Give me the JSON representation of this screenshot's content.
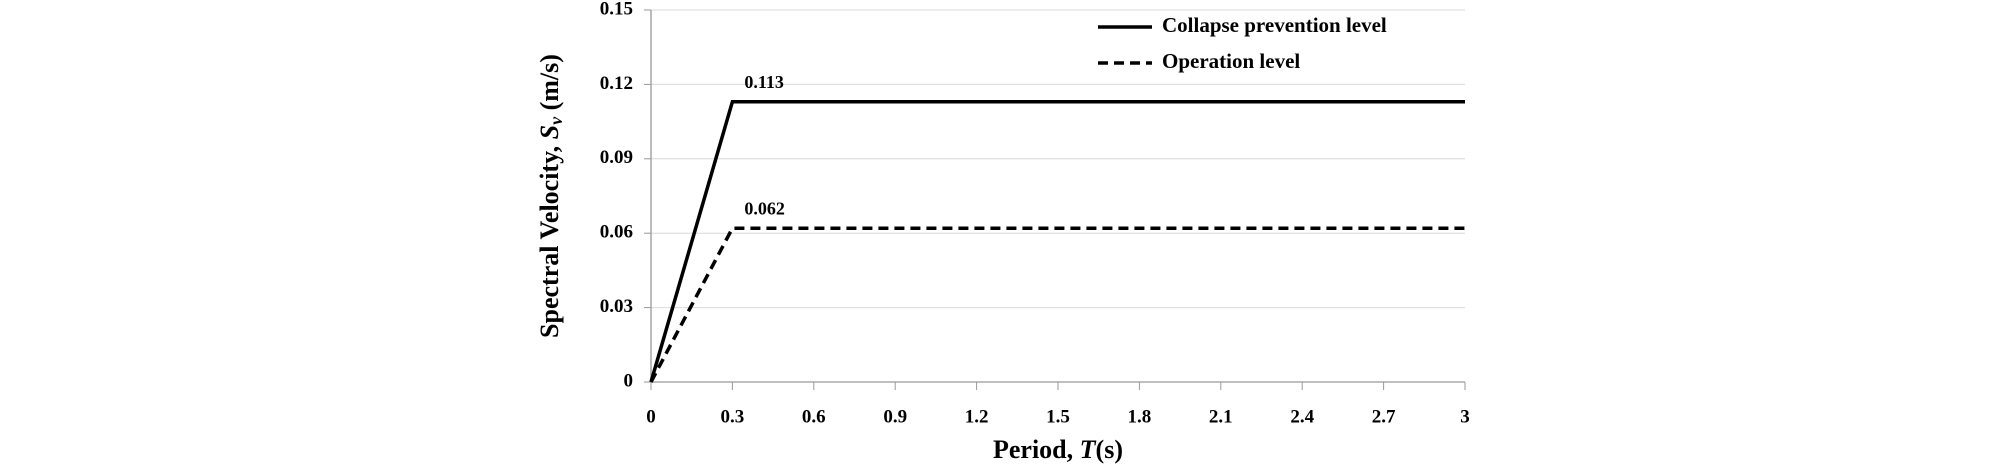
{
  "chart_data": {
    "type": "line",
    "xlabel": [
      "Period, ",
      "T",
      "(s)"
    ],
    "ylabel": [
      "Spectral Velocity, ",
      "S",
      "v",
      " (m/s)"
    ],
    "x": [
      0,
      0.3,
      3
    ],
    "series": [
      {
        "name": "Collapse prevention level",
        "color": "#000000",
        "dash": "solid",
        "values": [
          0,
          0.113,
          0.113
        ]
      },
      {
        "name": "Operation level",
        "color": "#000000",
        "dash": "dashed",
        "values": [
          0,
          0.062,
          0.062
        ]
      }
    ],
    "xlim": [
      0,
      3
    ],
    "xticks": [
      0,
      0.3,
      0.6,
      0.9,
      1.2,
      1.5,
      1.8,
      2.1,
      2.4,
      2.7,
      3
    ],
    "ylim": [
      0,
      0.15
    ],
    "yticks": [
      0,
      0.03,
      0.06,
      0.09,
      0.12,
      0.15
    ],
    "grid": true,
    "legend": "upper right"
  }
}
